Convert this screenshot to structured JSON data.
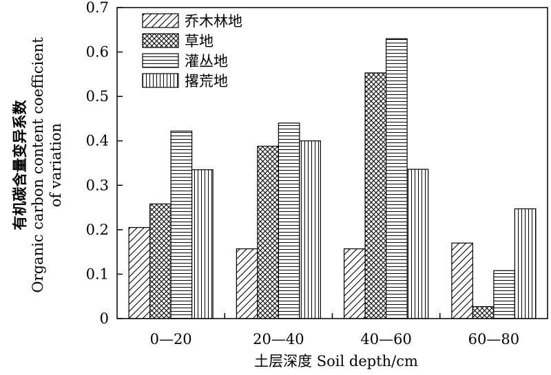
{
  "chart_data": {
    "type": "bar",
    "title": "",
    "categories": [
      "0—20",
      "20—40",
      "40—60",
      "60—80"
    ],
    "series": [
      {
        "name": "乔木林地",
        "pattern": "diagonal",
        "values": [
          0.205,
          0.157,
          0.157,
          0.17
        ]
      },
      {
        "name": "草地",
        "pattern": "crosshatch",
        "values": [
          0.258,
          0.388,
          0.553,
          0.027
        ]
      },
      {
        "name": "灌丛地",
        "pattern": "horizontal",
        "values": [
          0.422,
          0.44,
          0.63,
          0.108
        ]
      },
      {
        "name": "撂荒地",
        "pattern": "vertical",
        "values": [
          0.335,
          0.4,
          0.336,
          0.247
        ]
      }
    ],
    "xlabel": "土层深度 Soil depth/cm",
    "ylabel_lines": [
      "有机碳含量变异系数",
      "Organic carbon content coefficient",
      "of variation"
    ],
    "ylim": [
      0,
      0.7
    ],
    "yticks": [
      "0",
      "0.1",
      "0.2",
      "0.3",
      "0.4",
      "0.5",
      "0.6",
      "0.7"
    ],
    "legend_position": "top-left",
    "grid": false
  }
}
